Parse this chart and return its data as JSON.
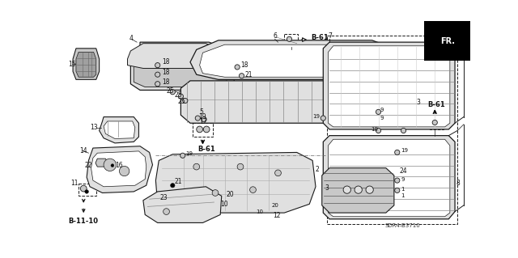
{
  "bg_color": "#ffffff",
  "line_color": "#1a1a1a",
  "text_color": "#111111",
  "fig_width": 6.4,
  "fig_height": 3.19,
  "dpi": 100,
  "diagram_ref": "SDR4-B3710",
  "b11_10": "B-11-10",
  "b61": "B-61",
  "fr": "FR."
}
